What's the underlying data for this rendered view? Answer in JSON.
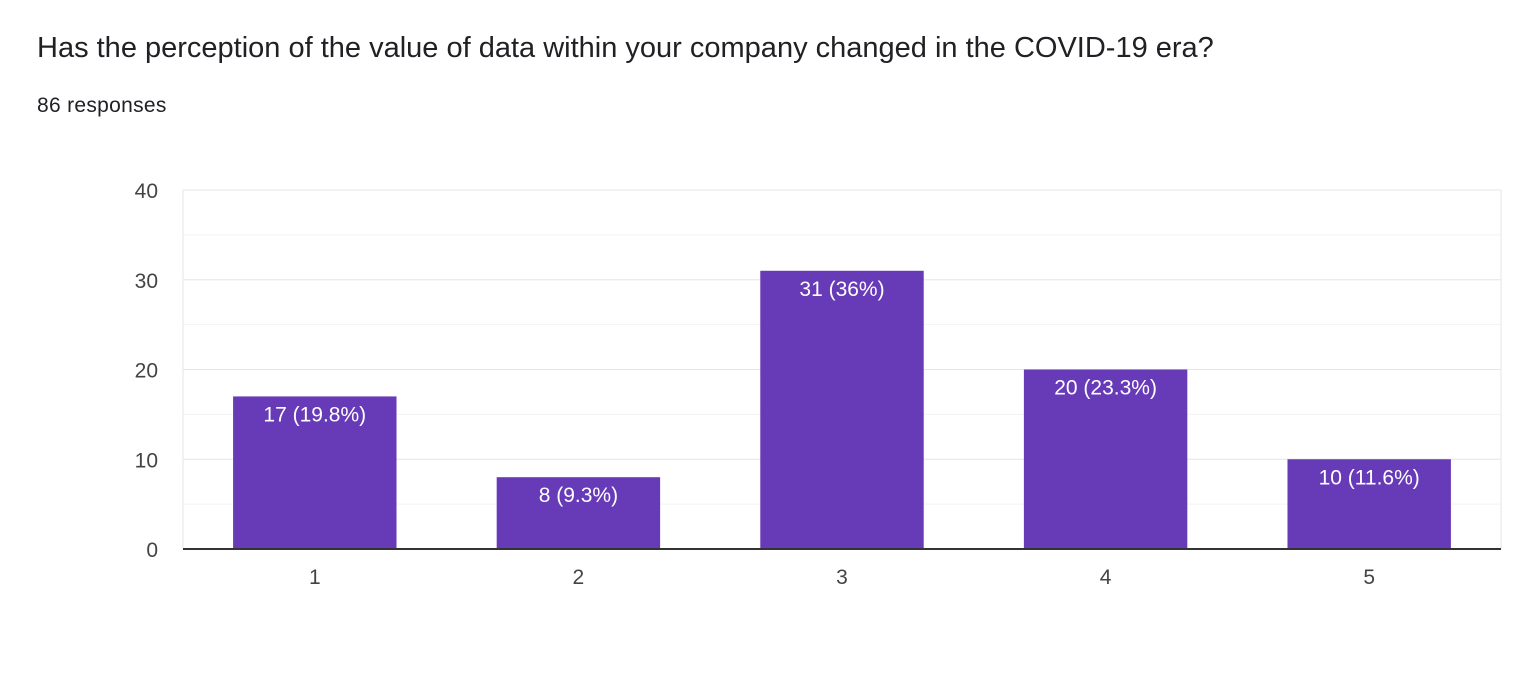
{
  "question": {
    "title": "Has the perception of the value of data within your company changed in the COVID-19 era?",
    "responses": "86 responses"
  },
  "chart_data": {
    "type": "bar",
    "categories": [
      "1",
      "2",
      "3",
      "4",
      "5"
    ],
    "values": [
      17,
      8,
      31,
      20,
      10
    ],
    "data_labels": [
      "17 (19.8%)",
      "8 (9.3%)",
      "31 (36%)",
      "20 (23.3%)",
      "10 (11.6%)"
    ],
    "ylim": [
      0,
      40
    ],
    "yticks": [
      0,
      10,
      20,
      30,
      40
    ],
    "bar_color": "#673ab7",
    "grid": true,
    "legend": "none"
  }
}
